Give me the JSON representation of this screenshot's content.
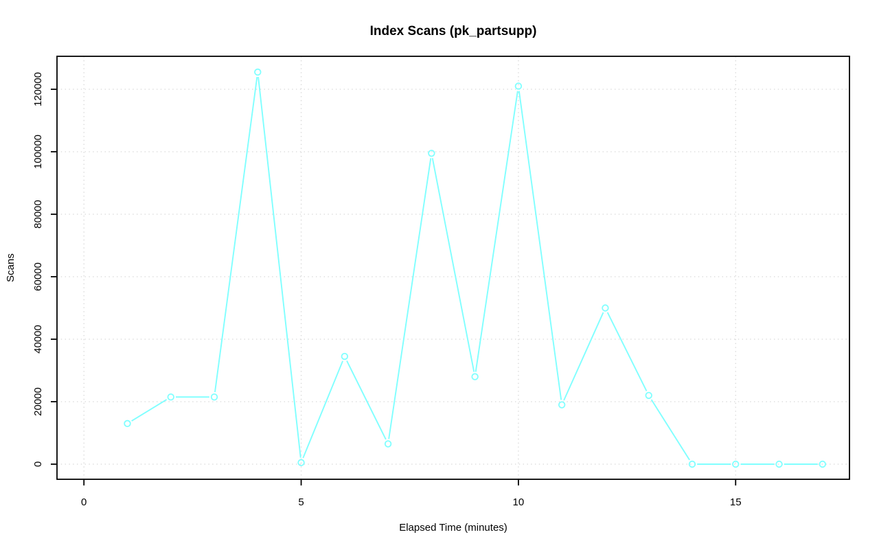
{
  "window": {
    "background": "#ffffff"
  },
  "chart_data": {
    "type": "line",
    "title": "Index Scans (pk_partsupp)",
    "xlabel": "Elapsed Time (minutes)",
    "ylabel": "Scans",
    "legend": "none",
    "grid": {
      "show": true,
      "style": "dotted",
      "color": "#D6D6D6"
    },
    "axis_color": "#000000",
    "plot_background": "#ffffff",
    "x_ticks": [
      0,
      5,
      10,
      15
    ],
    "y_ticks": [
      0,
      20000,
      40000,
      60000,
      80000,
      100000,
      120000
    ],
    "xlim": [
      -0.62,
      17.62
    ],
    "ylim": [
      -4835,
      130550
    ],
    "series": [
      {
        "name": "index-scans",
        "color": "#80FFFF",
        "marker": "open-circle",
        "line_type": "both-with-gaps",
        "x": [
          1,
          2,
          3,
          4,
          5,
          6,
          7,
          8,
          9,
          10,
          11,
          12,
          13,
          14,
          15,
          16,
          17
        ],
        "values": [
          13000,
          21500,
          21500,
          125500,
          500,
          34500,
          6500,
          99500,
          28000,
          121000,
          19000,
          50000,
          22000,
          0,
          0,
          0,
          0
        ]
      }
    ]
  }
}
